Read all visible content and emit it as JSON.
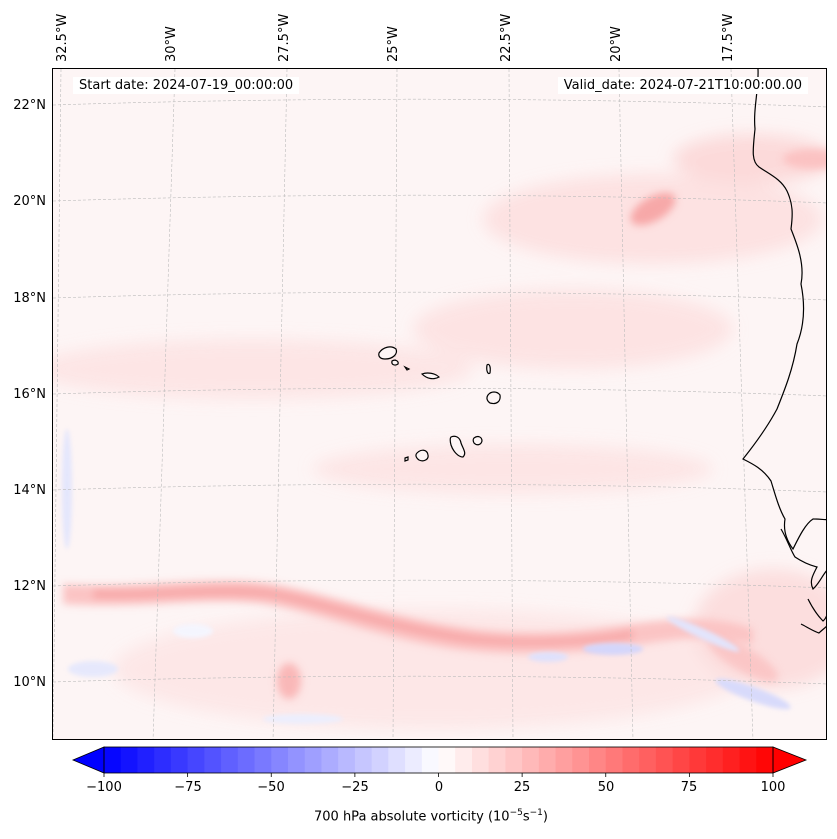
{
  "header": {
    "start_date": "Start date: 2024-07-19_00:00:00",
    "valid_date": "Valid_date: 2024-07-21T10:00:00.00"
  },
  "longitude_labels": [
    "32.5°W",
    "30°W",
    "27.5°W",
    "25°W",
    "22.5°W",
    "20°W",
    "17.5°W"
  ],
  "latitude_labels": [
    "22°N",
    "20°N",
    "18°N",
    "16°N",
    "14°N",
    "12°N",
    "10°N"
  ],
  "colorbar": {
    "ticks": [
      "−100",
      "−75",
      "−50",
      "−25",
      "0",
      "25",
      "50",
      "75",
      "100"
    ],
    "label_main": "700 hPa absolute vorticity (10",
    "label_sup1": "−5",
    "label_mid": "s",
    "label_sup2": "−1",
    "label_end": ")",
    "min": -100,
    "max": 100,
    "negative_color": "#0000ff",
    "positive_color": "#ff0000"
  },
  "colors": {
    "coastline": "#000000",
    "gridline": "#bbbbbb",
    "background_field": "#fdf6f6"
  }
}
